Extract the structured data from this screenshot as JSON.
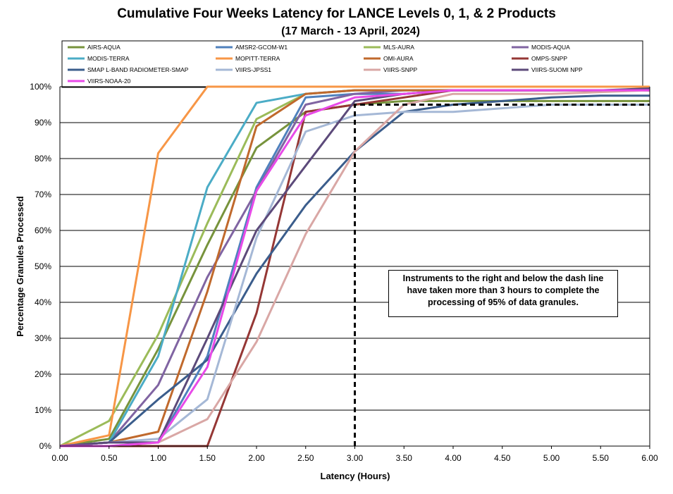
{
  "chart_data": {
    "type": "line",
    "title": "Cumulative Four Weeks Latency  for LANCE Levels 0, 1, & 2 Products",
    "subtitle": "(17  March   -  13  April,  2024)",
    "xlabel": "Latency (Hours)",
    "ylabel": "Percentage Granules Processed",
    "x": [
      0,
      0.5,
      1.0,
      1.5,
      2.0,
      2.5,
      3.0,
      3.5,
      4.0,
      4.5,
      5.0,
      5.5,
      6.0
    ],
    "xlim": [
      0,
      6
    ],
    "ylim": [
      0,
      100
    ],
    "x_tick_labels": [
      "0.00",
      "0.50",
      "1.00",
      "1.50",
      "2.00",
      "2.50",
      "3.00",
      "3.50",
      "4.00",
      "4.50",
      "5.00",
      "5.50",
      "6.00"
    ],
    "y_tick_labels": [
      "0%",
      "10%",
      "20%",
      "30%",
      "40%",
      "50%",
      "60%",
      "70%",
      "80%",
      "90%",
      "100%"
    ],
    "grid": "horizontal",
    "legend_position": "top",
    "series": [
      {
        "name": "AIRS-AQUA",
        "color": "#77933C",
        "values": [
          0,
          2,
          27,
          56,
          83,
          93,
          95,
          96,
          96,
          96,
          96,
          96,
          96
        ]
      },
      {
        "name": "AMSR2-GCOM-W1",
        "color": "#4F81BD",
        "values": [
          0,
          1,
          1,
          25,
          72,
          97,
          98,
          98,
          99,
          99,
          99,
          99,
          99
        ]
      },
      {
        "name": "MLS-AURA",
        "color": "#9BBB59",
        "values": [
          0,
          7,
          31,
          62,
          91,
          98,
          99,
          99,
          99,
          99,
          99,
          99,
          99
        ]
      },
      {
        "name": "MODIS-AQUA",
        "color": "#8064A2",
        "values": [
          0,
          1,
          17,
          47,
          71,
          95,
          98,
          99,
          99,
          99,
          99,
          99,
          99
        ]
      },
      {
        "name": "MODIS-TERRA",
        "color": "#4BACC6",
        "values": [
          0,
          1,
          25,
          72,
          95.5,
          98,
          99,
          99,
          99,
          99,
          99,
          99,
          99
        ]
      },
      {
        "name": "MOPITT-TERRA",
        "color": "#F79646",
        "values": [
          0,
          3,
          81.5,
          100,
          100,
          100,
          100,
          100,
          100,
          100,
          100,
          100,
          100
        ]
      },
      {
        "name": "OMI-AURA",
        "color": "#C0692C",
        "values": [
          0,
          1,
          4,
          43,
          89,
          98,
          99,
          99,
          99,
          99,
          99,
          99,
          99
        ]
      },
      {
        "name": "OMPS-SNPP",
        "color": "#953735",
        "values": [
          0,
          0,
          0,
          0,
          37,
          93,
          95,
          97,
          99,
          99,
          99,
          99,
          99
        ]
      },
      {
        "name": "SMAP L-BAND RADIOMETER-SMAP",
        "color": "#3B5D8C",
        "values": [
          0,
          1,
          13,
          24,
          48,
          67,
          82,
          93,
          95,
          96,
          97,
          97.5,
          97.5
        ]
      },
      {
        "name": "VIIRS-JPSS1",
        "color": "#A5B8D6",
        "values": [
          0,
          1,
          2,
          13,
          58,
          87.5,
          92,
          93,
          93,
          94,
          95,
          95,
          95
        ]
      },
      {
        "name": "VIIRS-SNPP",
        "color": "#D9A7A5",
        "values": [
          0,
          0,
          1,
          7.5,
          29,
          59,
          82,
          95,
          98,
          98,
          98,
          98.5,
          99
        ]
      },
      {
        "name": "VIIRS-SUOMI NPP",
        "color": "#5C4A7A",
        "values": [
          0,
          1,
          1,
          30,
          60,
          78,
          96,
          98,
          99,
          99,
          99,
          99,
          99.5
        ]
      },
      {
        "name": "VIIRS-NOAA-20",
        "color": "#E84AE8",
        "values": [
          0,
          0,
          1,
          22,
          71,
          92,
          97,
          98,
          99,
          99,
          99,
          99,
          99
        ]
      }
    ],
    "threshold": {
      "x": 3.0,
      "y": 95,
      "style": "dashed"
    },
    "annotation": "Instruments to the right and below the dash line have taken more than 3 hours to complete the processing of 95% of data granules."
  }
}
